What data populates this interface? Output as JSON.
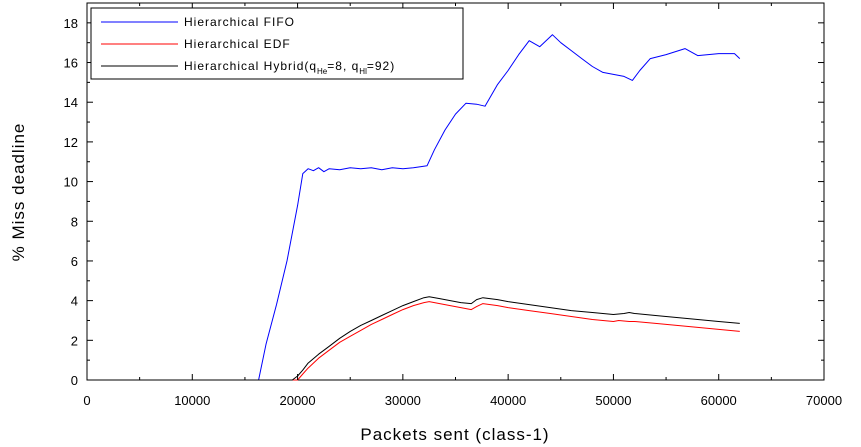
{
  "chart_data": {
    "type": "line",
    "title": "",
    "xlabel": "Packets sent (class-1)",
    "ylabel": "% Miss deadline",
    "xlim": [
      0,
      70000
    ],
    "ylim": [
      0,
      19
    ],
    "xticks": [
      0,
      10000,
      20000,
      30000,
      40000,
      50000,
      60000,
      70000
    ],
    "yticks": [
      0,
      2,
      4,
      6,
      8,
      10,
      12,
      14,
      16,
      18
    ],
    "xtick_labels": [
      "0",
      "10000",
      "20000",
      "30000",
      "40000",
      "50000",
      "60000",
      "70000"
    ],
    "ytick_labels": [
      "0",
      "2",
      "4",
      "6",
      "8",
      "10",
      "12",
      "14",
      "16",
      "18"
    ],
    "grid": false,
    "legend": {
      "placement": "top-left",
      "entries": [
        {
          "text": "Hierarchical FIFO"
        },
        {
          "text": "Hierarchical EDF"
        },
        {
          "text_main": "Hierarchical Hybrid(q",
          "sub1": "He",
          "mid": "=8, q",
          "sub2": "Hl",
          "end": "=92)"
        }
      ]
    },
    "series": [
      {
        "name": "Hierarchical FIFO",
        "color": "#0000ff",
        "x": [
          0,
          16300,
          17000,
          18000,
          19000,
          20000,
          20500,
          21000,
          21500,
          22000,
          22500,
          23000,
          24000,
          25000,
          26000,
          27000,
          28000,
          29000,
          30000,
          31000,
          32300,
          33000,
          34000,
          35000,
          36000,
          37000,
          37800,
          39000,
          40000,
          41000,
          42000,
          43000,
          44200,
          45000,
          46000,
          47000,
          48000,
          49000,
          50000,
          51000,
          51800,
          52500,
          53500,
          55000,
          56800,
          58000,
          59000,
          60000,
          61500,
          62000
        ],
        "y": [
          0,
          0,
          1.8,
          3.8,
          6.0,
          8.8,
          10.4,
          10.65,
          10.55,
          10.7,
          10.5,
          10.65,
          10.6,
          10.7,
          10.65,
          10.7,
          10.6,
          10.7,
          10.65,
          10.7,
          10.8,
          11.6,
          12.6,
          13.4,
          13.95,
          13.9,
          13.8,
          14.9,
          15.6,
          16.4,
          17.1,
          16.8,
          17.4,
          17.0,
          16.6,
          16.2,
          15.8,
          15.5,
          15.4,
          15.3,
          15.1,
          15.6,
          16.2,
          16.4,
          16.7,
          16.35,
          16.4,
          16.45,
          16.45,
          16.2
        ]
      },
      {
        "name": "Hierarchical EDF",
        "color": "#ff0000",
        "x": [
          0,
          20000,
          20500,
          21000,
          22000,
          23000,
          24000,
          25000,
          26000,
          27000,
          28000,
          29000,
          30000,
          31000,
          32000,
          32500,
          33500,
          34500,
          35500,
          36500,
          37000,
          37600,
          39000,
          40000,
          42000,
          44000,
          46000,
          48000,
          50000,
          50500,
          51500,
          52000,
          54000,
          56000,
          58000,
          60000,
          62000
        ],
        "y": [
          0,
          0,
          0.3,
          0.6,
          1.1,
          1.5,
          1.9,
          2.2,
          2.5,
          2.8,
          3.05,
          3.3,
          3.55,
          3.75,
          3.9,
          3.95,
          3.85,
          3.75,
          3.65,
          3.55,
          3.7,
          3.85,
          3.75,
          3.65,
          3.5,
          3.35,
          3.2,
          3.05,
          2.95,
          3.0,
          2.95,
          2.95,
          2.85,
          2.75,
          2.65,
          2.55,
          2.45
        ]
      },
      {
        "name": "Hierarchical Hybrid(qHe=8, qHl=92)",
        "color": "#000000",
        "x": [
          0,
          19500,
          20000,
          20500,
          21000,
          22000,
          23000,
          24000,
          25000,
          26000,
          27000,
          28000,
          29000,
          30000,
          31000,
          32000,
          32500,
          33500,
          34500,
          35500,
          36500,
          37000,
          37600,
          39000,
          40000,
          42000,
          44000,
          46000,
          48000,
          50000,
          51000,
          51500,
          52000,
          54000,
          56000,
          58000,
          60000,
          62000
        ],
        "y": [
          0,
          0,
          0.2,
          0.5,
          0.85,
          1.3,
          1.7,
          2.1,
          2.45,
          2.75,
          3.0,
          3.25,
          3.5,
          3.75,
          3.95,
          4.15,
          4.2,
          4.1,
          4.0,
          3.9,
          3.85,
          4.05,
          4.15,
          4.05,
          3.95,
          3.8,
          3.65,
          3.5,
          3.4,
          3.3,
          3.35,
          3.4,
          3.35,
          3.25,
          3.15,
          3.05,
          2.95,
          2.85
        ]
      }
    ]
  }
}
